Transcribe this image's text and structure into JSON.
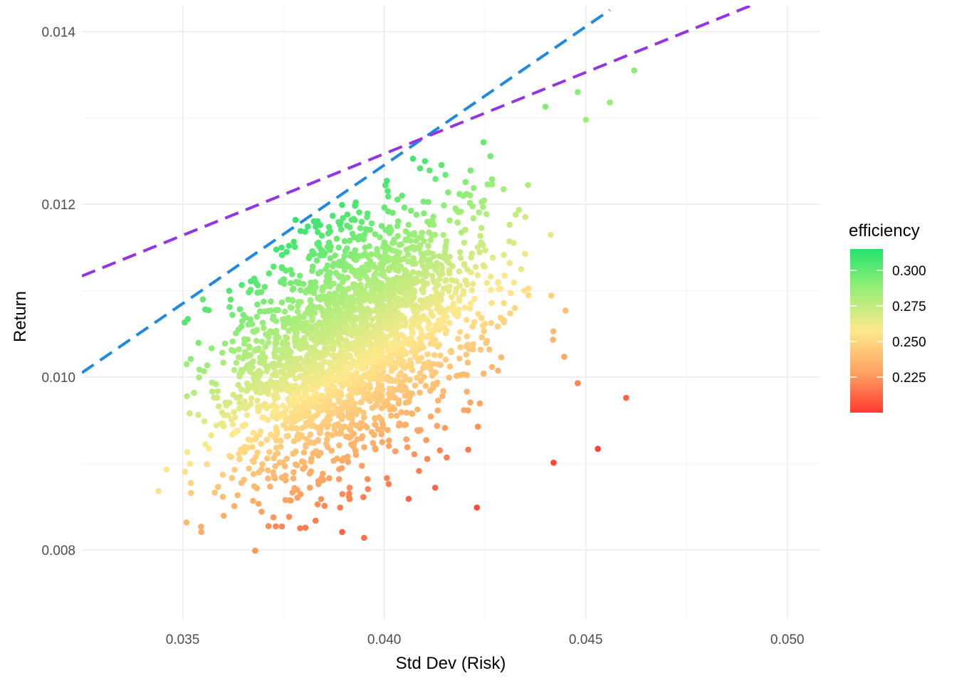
{
  "chart_data": {
    "type": "scatter",
    "title": "",
    "xlabel": "Std Dev (Risk)",
    "ylabel": "Return",
    "xlim": [
      0.0325,
      0.0508
    ],
    "ylim": [
      0.0072,
      0.0143
    ],
    "x_ticks": [
      0.035,
      0.04,
      0.045,
      0.05
    ],
    "x_tick_labels": [
      "0.035",
      "0.040",
      "0.045",
      "0.050"
    ],
    "y_ticks": [
      0.008,
      0.01,
      0.012,
      0.014
    ],
    "y_tick_labels": [
      "0.008",
      "0.010",
      "0.012",
      "0.014"
    ],
    "grid": true,
    "legend": {
      "title": "efficiency",
      "placement": "right",
      "range": [
        0.2,
        0.315
      ],
      "ticks": [
        0.225,
        0.25,
        0.275,
        0.3
      ],
      "tick_labels": [
        "0.225",
        "0.250",
        "0.275",
        "0.300"
      ],
      "colors": [
        "#ff3b30",
        "#ffa463",
        "#ffe88c",
        "#9aee78",
        "#22e36d"
      ]
    },
    "cloud": {
      "count": 2600,
      "seed": 7,
      "mean_sd": 0.0392,
      "mean_ret": 0.0104,
      "sd_spread": 0.0016,
      "ret_spread": 0.00075,
      "correlation": 0.45
    },
    "highlight_points": [
      {
        "x": 0.0344,
        "y": 0.00868,
        "eff": 0.255
      },
      {
        "x": 0.0346,
        "y": 0.00893,
        "eff": 0.258
      },
      {
        "x": 0.0368,
        "y": 0.00799,
        "eff": 0.225
      },
      {
        "x": 0.0395,
        "y": 0.00814,
        "eff": 0.214
      },
      {
        "x": 0.0423,
        "y": 0.00849,
        "eff": 0.205
      },
      {
        "x": 0.0442,
        "y": 0.00901,
        "eff": 0.203
      },
      {
        "x": 0.0453,
        "y": 0.00917,
        "eff": 0.202
      },
      {
        "x": 0.046,
        "y": 0.00976,
        "eff": 0.212
      },
      {
        "x": 0.0462,
        "y": 0.01355,
        "eff": 0.29
      },
      {
        "x": 0.0456,
        "y": 0.01318,
        "eff": 0.287
      },
      {
        "x": 0.045,
        "y": 0.01298,
        "eff": 0.286
      },
      {
        "x": 0.0448,
        "y": 0.0133,
        "eff": 0.29
      },
      {
        "x": 0.0445,
        "y": 0.01077,
        "eff": 0.24
      },
      {
        "x": 0.0448,
        "y": 0.00993,
        "eff": 0.22
      },
      {
        "x": 0.0434,
        "y": 0.01125,
        "eff": 0.265
      },
      {
        "x": 0.044,
        "y": 0.01313,
        "eff": 0.292
      },
      {
        "x": 0.0351,
        "y": 0.01015,
        "eff": 0.285
      },
      {
        "x": 0.0355,
        "y": 0.0109,
        "eff": 0.3
      },
      {
        "x": 0.0378,
        "y": 0.01182,
        "eff": 0.312
      }
    ],
    "lines": [
      {
        "name": "capital-market-line-blue",
        "color": "#1e88e5",
        "points": [
          [
            0.0325,
            0.01005
          ],
          [
            0.0456,
            0.01425
          ]
        ]
      },
      {
        "name": "capital-market-line-purple",
        "color": "#9334e6",
        "points": [
          [
            0.0325,
            0.01117
          ],
          [
            0.0493,
            0.01434
          ]
        ]
      }
    ]
  }
}
